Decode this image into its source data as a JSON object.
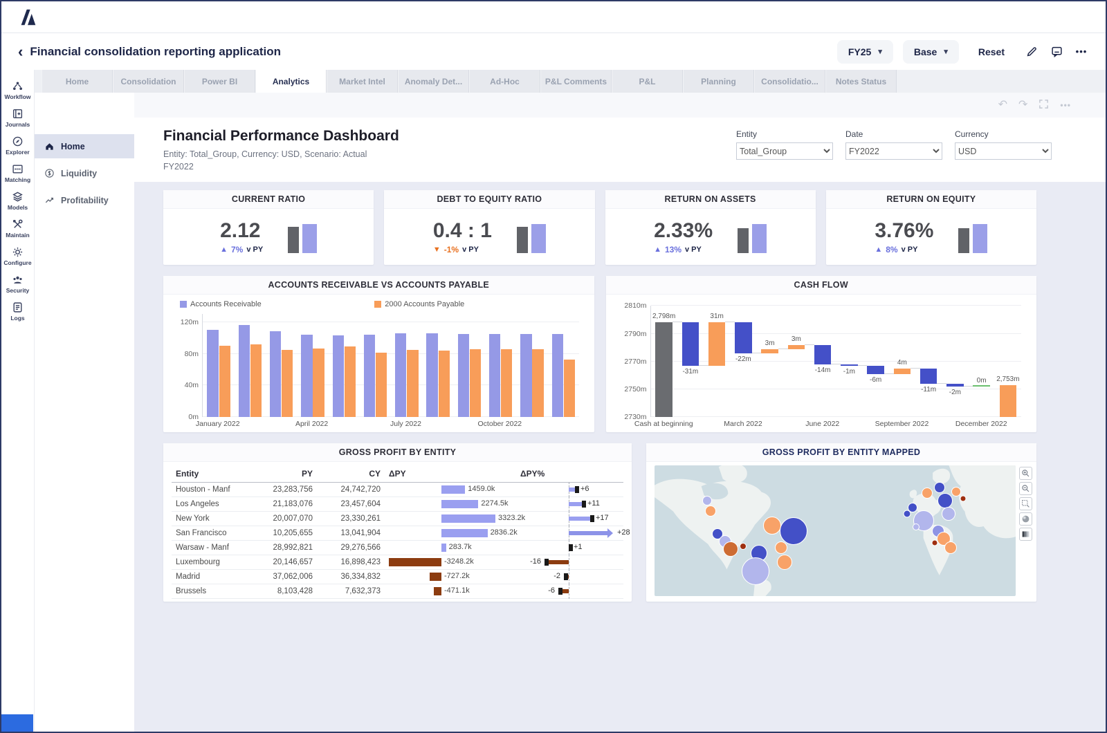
{
  "app_bar": {
    "title": "Financial consolidation reporting application",
    "back_icon": "‹",
    "period": "FY25",
    "version": "Base",
    "reset": "Reset"
  },
  "tabs": [
    {
      "label": "Home"
    },
    {
      "label": "Consolidation"
    },
    {
      "label": "Power BI"
    },
    {
      "label": "Analytics",
      "active": true
    },
    {
      "label": "Market Intel"
    },
    {
      "label": "Anomaly Det..."
    },
    {
      "label": "Ad-Hoc"
    },
    {
      "label": "P&L Comments"
    },
    {
      "label": "P&L"
    },
    {
      "label": "Planning"
    },
    {
      "label": "Consolidatio..."
    },
    {
      "label": "Notes Status"
    }
  ],
  "nav_rail": {
    "items": [
      {
        "label": "Workflow"
      },
      {
        "label": "Journals"
      },
      {
        "label": "Explorer"
      },
      {
        "label": "Matching"
      },
      {
        "label": "Models"
      },
      {
        "label": "Maintain"
      },
      {
        "label": "Configure"
      },
      {
        "label": "Security"
      },
      {
        "label": "Logs"
      }
    ]
  },
  "side_menu": {
    "items": [
      {
        "label": "Home",
        "active": true
      },
      {
        "label": "Liquidity"
      },
      {
        "label": "Profitability"
      }
    ]
  },
  "page_header": {
    "title": "Financial Performance Dashboard",
    "subtitle": "Entity: Total_Group, Currency: USD, Scenario: Actual",
    "subtitle2": "FY2022"
  },
  "filters": [
    {
      "label": "Entity",
      "value": "Total_Group"
    },
    {
      "label": "Date",
      "value": "FY2022"
    },
    {
      "label": "Currency",
      "value": "USD"
    }
  ],
  "kpis": [
    {
      "title": "CURRENT RATIO",
      "value": "2.12",
      "delta": "7%",
      "dir": "up",
      "vs": "v PY",
      "spark": [
        38,
        42
      ]
    },
    {
      "title": "DEBT TO EQUITY RATIO",
      "value": "0.4 : 1",
      "delta": "-1%",
      "dir": "down",
      "vs": "v PY",
      "spark": [
        38,
        42
      ]
    },
    {
      "title": "RETURN ON ASSETS",
      "value": "2.33%",
      "delta": "13%",
      "dir": "up",
      "vs": "v PY",
      "spark": [
        36,
        42
      ]
    },
    {
      "title": "RETURN ON EQUITY",
      "value": "3.76%",
      "delta": "8%",
      "dir": "up",
      "vs": "v PY",
      "spark": [
        36,
        42
      ]
    }
  ],
  "colors": {
    "purple": "#9599e6",
    "orange": "#f89d59",
    "indigo": "#4450c8",
    "gray": "#6a6c70",
    "green": "#6abf6e",
    "up": "#6a70dd",
    "down": "#e8701f",
    "table_pos": "#9a9ff0",
    "table_neg": "#8c3c10"
  },
  "chart_data": [
    {
      "id": "ar_ap",
      "type": "bar",
      "title": "ACCOUNTS RECEIVABLE VS ACCOUNTS PAYABLE",
      "categories": [
        "January 2022",
        "February 2022",
        "March 2022",
        "April 2022",
        "May 2022",
        "June 2022",
        "July 2022",
        "August 2022",
        "September 2022",
        "October 2022",
        "November 2022",
        "December 2022"
      ],
      "series": [
        {
          "name": "Accounts Receivable",
          "color": "#9599e6",
          "values": [
            110,
            116,
            108,
            104,
            103,
            104,
            106,
            106,
            105,
            105,
            105,
            105
          ]
        },
        {
          "name": "2000 Accounts Payable",
          "color": "#f89d59",
          "values": [
            90,
            92,
            85,
            87,
            89,
            81,
            85,
            84,
            86,
            86,
            86,
            73
          ]
        }
      ],
      "ylabel_unit": "m",
      "ylim": [
        0,
        130
      ],
      "yticks": [
        {
          "v": 0,
          "label": "0m"
        },
        {
          "v": 40,
          "label": "40m"
        },
        {
          "v": 80,
          "label": "80m"
        },
        {
          "v": 120,
          "label": "120m"
        }
      ],
      "x_tick_labels": [
        {
          "i": 0,
          "label": "January 2022"
        },
        {
          "i": 3,
          "label": "April 2022"
        },
        {
          "i": 6,
          "label": "July 2022"
        },
        {
          "i": 9,
          "label": "October 2022"
        }
      ],
      "legend_position": "top"
    },
    {
      "id": "cash_flow",
      "type": "waterfall",
      "title": "CASH FLOW",
      "ylim": [
        2730,
        2810
      ],
      "yticks": [
        {
          "v": 2810,
          "label": "2810m"
        },
        {
          "v": 2790,
          "label": "2790m"
        },
        {
          "v": 2770,
          "label": "2770m"
        },
        {
          "v": 2750,
          "label": "2750m"
        },
        {
          "v": 2730,
          "label": "2730m"
        }
      ],
      "bars": [
        {
          "from": 2730,
          "to": 2798,
          "color": "gray",
          "label": "2,798m",
          "label_pos": "above"
        },
        {
          "from": 2798,
          "to": 2767,
          "color": "indigo",
          "label": "-31m",
          "label_pos": "below"
        },
        {
          "from": 2767,
          "to": 2798,
          "color": "orange",
          "label": "31m",
          "label_pos": "above"
        },
        {
          "from": 2798,
          "to": 2776,
          "color": "indigo",
          "label": "-22m",
          "label_pos": "below"
        },
        {
          "from": 2776,
          "to": 2779,
          "color": "orange",
          "label": "3m",
          "label_pos": "above"
        },
        {
          "from": 2779,
          "to": 2782,
          "color": "orange",
          "label": "3m",
          "label_pos": "above"
        },
        {
          "from": 2782,
          "to": 2768,
          "color": "indigo",
          "label": "-14m",
          "label_pos": "below"
        },
        {
          "from": 2768,
          "to": 2767,
          "color": "indigo",
          "label": "-1m",
          "label_pos": "below"
        },
        {
          "from": 2767,
          "to": 2761,
          "color": "indigo",
          "label": "-6m",
          "label_pos": "below"
        },
        {
          "from": 2761,
          "to": 2765,
          "color": "orange",
          "label": "4m",
          "label_pos": "above"
        },
        {
          "from": 2765,
          "to": 2754,
          "color": "indigo",
          "label": "-11m",
          "label_pos": "below"
        },
        {
          "from": 2754,
          "to": 2752,
          "color": "indigo",
          "label": "-2m",
          "label_pos": "below"
        },
        {
          "from": 2752,
          "to": 2752,
          "color": "green",
          "label": "0m",
          "label_pos": "above"
        },
        {
          "from": 2730,
          "to": 2753,
          "color": "orange",
          "label": "2,753m",
          "label_pos": "above"
        }
      ],
      "x_tick_labels": [
        {
          "i": 0,
          "label": "Cash at beginning"
        },
        {
          "i": 3,
          "label": "March 2022"
        },
        {
          "i": 6,
          "label": "June 2022"
        },
        {
          "i": 9,
          "label": "September 2022"
        },
        {
          "i": 12,
          "label": "December 2022"
        }
      ]
    },
    {
      "id": "gross_profit_table",
      "type": "table",
      "title": "GROSS PROFIT BY ENTITY",
      "columns": [
        "Entity",
        "PY",
        "CY",
        "ΔPY",
        "ΔPY%"
      ],
      "rows": [
        {
          "entity": "Houston - Manf",
          "py": "23,283,756",
          "cy": "24,742,720",
          "dpy_label": "1459.0k",
          "dpy_k": 1459.0,
          "pct": 6,
          "pct_arrow": false
        },
        {
          "entity": "Los Angeles",
          "py": "21,183,076",
          "cy": "23,457,604",
          "dpy_label": "2274.5k",
          "dpy_k": 2274.5,
          "pct": 11,
          "pct_arrow": false
        },
        {
          "entity": "New York",
          "py": "20,007,070",
          "cy": "23,330,261",
          "dpy_label": "3323.2k",
          "dpy_k": 3323.2,
          "pct": 17,
          "pct_arrow": false
        },
        {
          "entity": "San Francisco",
          "py": "10,205,655",
          "cy": "13,041,904",
          "dpy_label": "2836.2k",
          "dpy_k": 2836.2,
          "pct": 28,
          "pct_arrow": true
        },
        {
          "entity": "Warsaw - Manf",
          "py": "28,992,821",
          "cy": "29,276,566",
          "dpy_label": "283.7k",
          "dpy_k": 283.7,
          "pct": 1,
          "pct_arrow": false
        },
        {
          "entity": "Luxembourg",
          "py": "20,146,657",
          "cy": "16,898,423",
          "dpy_label": "-3248.2k",
          "dpy_k": -3248.2,
          "pct": -16,
          "pct_arrow": false
        },
        {
          "entity": "Madrid",
          "py": "37,062,006",
          "cy": "36,334,832",
          "dpy_label": "-727.2k",
          "dpy_k": -727.2,
          "pct": -2,
          "pct_arrow": false
        },
        {
          "entity": "Brussels",
          "py": "8,103,428",
          "cy": "7,632,373",
          "dpy_label": "-471.1k",
          "dpy_k": -471.1,
          "pct": -6,
          "pct_arrow": false
        }
      ]
    },
    {
      "id": "gp_map",
      "type": "bubble_map",
      "title": "GROSS PROFIT BY ENTITY MAPPED",
      "bubble_colors": {
        "blue": "#4350c7",
        "lpurple": "#b2b6ec",
        "mpurple": "#8e94e4",
        "orange": "#f8a268",
        "dorange": "#cd6c33",
        "dred": "#9e2f10"
      },
      "bubbles": [
        {
          "x": 14.5,
          "y": 27,
          "r": 7,
          "c": "lpurple"
        },
        {
          "x": 15.5,
          "y": 35,
          "r": 8,
          "c": "orange"
        },
        {
          "x": 17.5,
          "y": 52,
          "r": 8,
          "c": "blue"
        },
        {
          "x": 19.5,
          "y": 58,
          "r": 9,
          "c": "lpurple"
        },
        {
          "x": 21,
          "y": 64,
          "r": 11,
          "c": "dorange"
        },
        {
          "x": 24.5,
          "y": 62,
          "r": 5,
          "c": "dred"
        },
        {
          "x": 29,
          "y": 67,
          "r": 12,
          "c": "blue"
        },
        {
          "x": 28,
          "y": 81,
          "r": 20,
          "c": "lpurple"
        },
        {
          "x": 32.5,
          "y": 46,
          "r": 13,
          "c": "orange"
        },
        {
          "x": 38.5,
          "y": 50,
          "r": 20,
          "c": "blue"
        },
        {
          "x": 35,
          "y": 63,
          "r": 9,
          "c": "orange"
        },
        {
          "x": 36,
          "y": 74,
          "r": 11,
          "c": "orange"
        },
        {
          "x": 75.5,
          "y": 21,
          "r": 8,
          "c": "orange"
        },
        {
          "x": 79,
          "y": 17,
          "r": 8,
          "c": "blue"
        },
        {
          "x": 83.5,
          "y": 20,
          "r": 7,
          "c": "orange"
        },
        {
          "x": 85.5,
          "y": 25,
          "r": 4.5,
          "c": "dred"
        },
        {
          "x": 80.5,
          "y": 27,
          "r": 11,
          "c": "blue"
        },
        {
          "x": 71.5,
          "y": 32,
          "r": 7,
          "c": "blue"
        },
        {
          "x": 70,
          "y": 37,
          "r": 5.5,
          "c": "blue"
        },
        {
          "x": 74.5,
          "y": 42,
          "r": 15,
          "c": "lpurple"
        },
        {
          "x": 81.5,
          "y": 37,
          "r": 10,
          "c": "lpurple"
        },
        {
          "x": 78.5,
          "y": 50,
          "r": 9,
          "c": "mpurple"
        },
        {
          "x": 72.5,
          "y": 47,
          "r": 5,
          "c": "lpurple"
        },
        {
          "x": 80,
          "y": 56,
          "r": 10,
          "c": "orange"
        },
        {
          "x": 77.5,
          "y": 59,
          "r": 4.5,
          "c": "dred"
        },
        {
          "x": 82,
          "y": 63,
          "r": 9,
          "c": "orange"
        }
      ],
      "controls": [
        "zoom-in",
        "zoom-out",
        "marquee-zoom",
        "globe",
        "layers"
      ]
    }
  ]
}
